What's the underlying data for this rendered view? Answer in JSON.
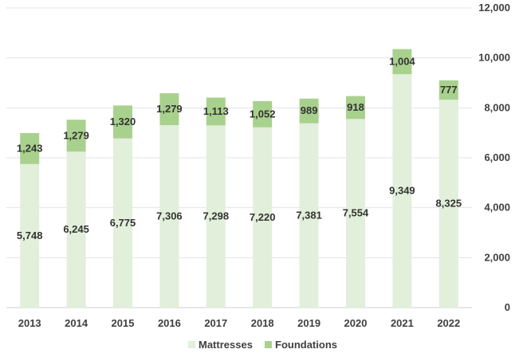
{
  "colors": {
    "mattresses": "#e2efda",
    "foundations": "#a9d18e",
    "grid": "#e3e3e3",
    "text": "#404040"
  },
  "chart_data": {
    "type": "bar",
    "stacked": true,
    "title": "",
    "xlabel": "",
    "ylabel": "",
    "categories": [
      "2013",
      "2014",
      "2015",
      "2016",
      "2017",
      "2018",
      "2019",
      "2020",
      "2021",
      "2022"
    ],
    "series": [
      {
        "name": "Mattresses",
        "values": [
          5748,
          6245,
          6775,
          7306,
          7298,
          7220,
          7381,
          7554,
          9349,
          8325
        ],
        "labels": [
          "5,748",
          "6,245",
          "6,775",
          "7,306",
          "7,298",
          "7,220",
          "7,381",
          "7,554",
          "9,349",
          "8,325"
        ]
      },
      {
        "name": "Foundations",
        "values": [
          1243,
          1279,
          1320,
          1279,
          1113,
          1052,
          989,
          918,
          1004,
          777
        ],
        "labels": [
          "1,243",
          "1,279",
          "1,320",
          "1,279",
          "1,113",
          "1,052",
          "989",
          "918",
          "1,004",
          "777"
        ]
      }
    ],
    "ylim": [
      0,
      12000
    ],
    "yticks": [
      0,
      2000,
      4000,
      6000,
      8000,
      10000,
      12000
    ],
    "ytick_labels": [
      "0",
      "2,000",
      "4,000",
      "6,000",
      "8,000",
      "10,000",
      "12,000"
    ],
    "y_axis_side": "right",
    "grid": true,
    "legend_position": "bottom"
  }
}
